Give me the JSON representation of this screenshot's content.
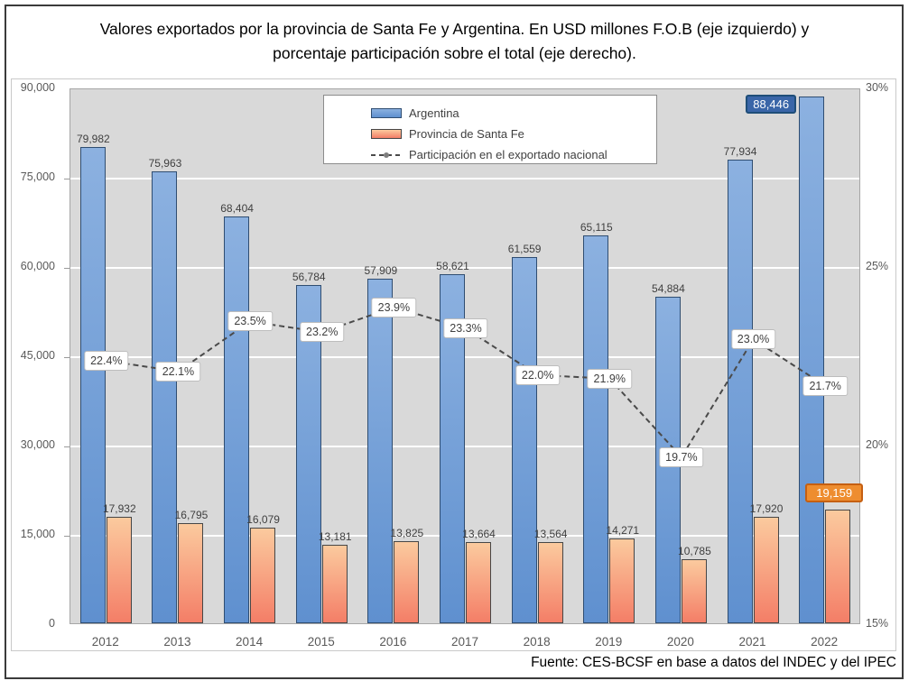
{
  "title": {
    "text": "Valores exportados por la provincia de Santa Fe y Argentina. En USD millones F.O.B (eje izquierdo) y porcentaje participación sobre el total (eje derecho)."
  },
  "footer": {
    "source": "Fuente: CES-BCSF en base a datos del INDEC y del IPEC"
  },
  "chart_data": {
    "type": "bar",
    "title": "Valores exportados por la provincia de Santa Fe y Argentina. En USD millones F.O.B (eje izquierdo) y porcentaje participación sobre el total (eje derecho).",
    "categories": [
      "2012",
      "2013",
      "2014",
      "2015",
      "2016",
      "2017",
      "2018",
      "2019",
      "2020",
      "2021",
      "2022"
    ],
    "series": [
      {
        "name": "Argentina",
        "type": "bar",
        "axis": "left",
        "values": [
          79982,
          75963,
          68404,
          56784,
          57909,
          58621,
          61559,
          65115,
          54884,
          77934,
          88446
        ],
        "labels": [
          "79,982",
          "75,963",
          "68,404",
          "56,784",
          "57,909",
          "58,621",
          "61,559",
          "65,115",
          "54,884",
          "77,934",
          "88,446"
        ]
      },
      {
        "name": "Provincia de Santa Fe",
        "type": "bar",
        "axis": "left",
        "values": [
          17932,
          16795,
          16079,
          13181,
          13825,
          13664,
          13564,
          14271,
          10785,
          17920,
          19159
        ],
        "labels": [
          "17,932",
          "16,795",
          "16,079",
          "13,181",
          "13,825",
          "13,664",
          "13,564",
          "14,271",
          "10,785",
          "17,920",
          "19,159"
        ]
      },
      {
        "name": "Participación en el exportado nacional",
        "type": "line",
        "axis": "right",
        "values": [
          22.4,
          22.1,
          23.5,
          23.2,
          23.9,
          23.3,
          22.0,
          21.9,
          19.7,
          23.0,
          21.7
        ],
        "labels": [
          "22.4%",
          "22.1%",
          "23.5%",
          "23.2%",
          "23.9%",
          "23.3%",
          "22.0%",
          "21.9%",
          "19.7%",
          "23.0%",
          "21.7%"
        ]
      }
    ],
    "left_axis": {
      "min": 0,
      "max": 90000,
      "step": 15000,
      "tick_labels": [
        "0",
        "15,000",
        "30,000",
        "45,000",
        "60,000",
        "75,000",
        "90,000"
      ]
    },
    "right_axis": {
      "min": 15,
      "max": 30,
      "tick_values": [
        15,
        20,
        25,
        30
      ],
      "tick_labels": [
        "15%",
        "20%",
        "25%",
        "30%"
      ]
    },
    "grid": true,
    "legend_position": "top-center",
    "highlight_last_category": true,
    "colors": {
      "plot_bg": "#d9d9d9",
      "grid": "#ffffff",
      "bar_blue_top": "#8cb1e0",
      "bar_blue_bottom": "#5f90cf",
      "bar_blue_border": "#2f4d71",
      "bar_orange_top": "#fbca9e",
      "bar_orange_bottom": "#f47e67",
      "bar_orange_border": "#464646",
      "line": "#4a4a4a",
      "marker": "#7f7f7f",
      "callout_blue_bg": "#3a66a8",
      "callout_blue_border": "#1f4e79",
      "callout_orange_bg": "#ee8d2f",
      "callout_orange_border": "#c55f11",
      "label_text": "#404040",
      "axis_text": "#595959"
    }
  }
}
